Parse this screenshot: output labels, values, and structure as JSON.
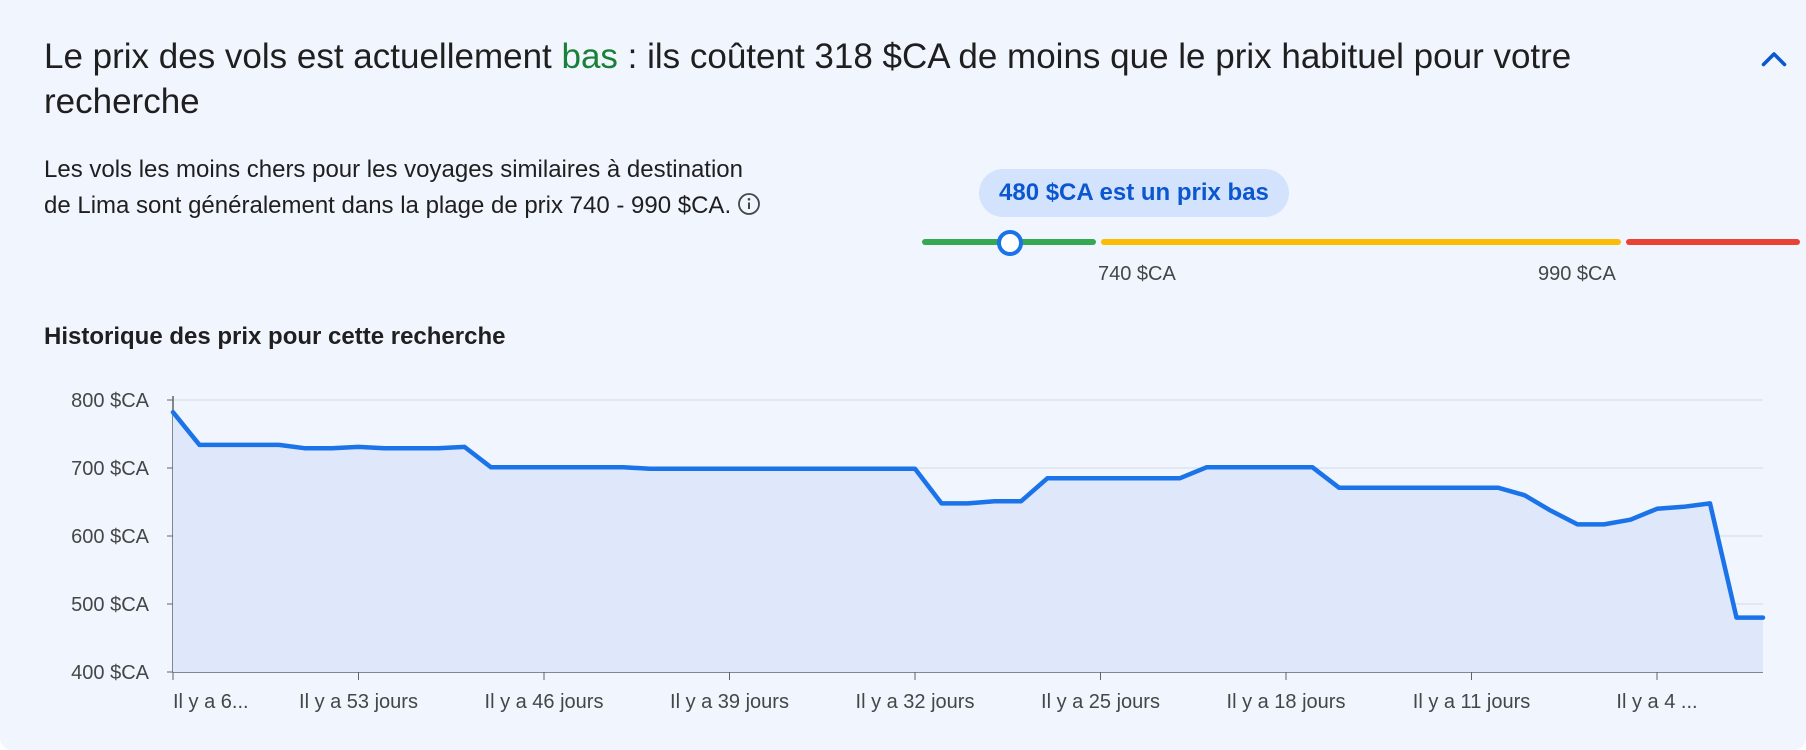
{
  "headline": {
    "prefix": "Le prix des vols est actuellement ",
    "level": "bas",
    "suffix": " : ils coûtent 318 $CA de moins que le prix habituel pour votre recherche"
  },
  "description": "Les vols les moins chers pour les voyages similaires à destination de Lima sont généralement dans la plage de prix 740 - 990 $CA.",
  "price_indicator": {
    "bubble": "480 $CA est un prix bas",
    "low_bound_label": "740 $CA",
    "high_bound_label": "990 $CA",
    "colors": {
      "low": "#34a853",
      "typical": "#fbbc04",
      "high": "#ea4335",
      "marker": "#1a73e8"
    }
  },
  "history_title": "Historique des prix pour cette recherche",
  "chart_data": {
    "type": "area",
    "ylim": [
      400,
      800
    ],
    "y_ticks": [
      "800 $CA",
      "700 $CA",
      "600 $CA",
      "500 $CA",
      "400 $CA"
    ],
    "x_ticks": [
      "Il y a 6...",
      "Il y a 53 jours",
      "Il y a 46 jours",
      "Il y a 39 jours",
      "Il y a 32 jours",
      "Il y a 25 jours",
      "Il y a 18 jours",
      "Il y a 11 jours",
      "Il y a 4 ..."
    ],
    "x_tick_days_ago": [
      60,
      53,
      46,
      39,
      32,
      25,
      18,
      11,
      4
    ],
    "grid": true,
    "line_color": "#1a73e8",
    "fill_color": "#dfe8fb",
    "series": [
      {
        "days_ago": [
          60,
          59,
          58,
          57,
          56,
          55,
          54,
          53,
          52,
          51,
          50,
          49,
          48,
          47,
          46,
          45,
          44,
          43,
          42,
          41,
          40,
          39,
          38,
          37,
          36,
          35,
          34,
          33,
          32,
          31,
          30,
          29,
          28,
          27,
          26,
          25,
          24,
          23,
          22,
          21,
          20,
          19,
          18,
          17,
          16,
          15,
          14,
          13,
          12,
          11,
          10,
          9,
          8,
          7,
          6,
          5,
          4,
          3,
          2,
          1,
          0
        ],
        "values": [
          782,
          734,
          734,
          734,
          734,
          729,
          729,
          731,
          729,
          729,
          729,
          731,
          701,
          701,
          701,
          701,
          701,
          701,
          699,
          699,
          699,
          699,
          699,
          699,
          699,
          699,
          699,
          699,
          699,
          648,
          648,
          651,
          651,
          685,
          685,
          685,
          685,
          685,
          685,
          701,
          701,
          701,
          701,
          701,
          671,
          671,
          671,
          671,
          671,
          671,
          671,
          660,
          637,
          617,
          617,
          624,
          640,
          643,
          648,
          480,
          480
        ]
      }
    ]
  }
}
